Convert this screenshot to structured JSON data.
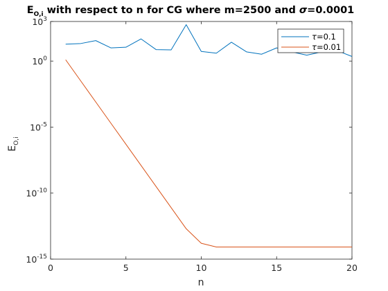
{
  "chart_data": {
    "type": "line",
    "title": {
      "prefix": "E",
      "prefix_sub": "O,i",
      "middle": " with respect to n for CG where m=2500 and ",
      "sigma_symbol": "σ",
      "suffix": "=0.0001"
    },
    "xlabel": "n",
    "ylabel": {
      "main": "E",
      "sub": "O,i"
    },
    "xlim": [
      0,
      20
    ],
    "ylim_log10": [
      -15,
      3
    ],
    "yscale": "log",
    "x_ticks": [
      0,
      5,
      10,
      15,
      20
    ],
    "y_ticks": [
      {
        "base": "10",
        "exp": "3",
        "log": 3
      },
      {
        "base": "10",
        "exp": "0",
        "log": 0
      },
      {
        "base": "10",
        "exp": "-5",
        "log": -5
      },
      {
        "base": "10",
        "exp": "-10",
        "log": -10
      },
      {
        "base": "10",
        "exp": "-15",
        "log": -15
      }
    ],
    "legend_position": "top-right",
    "grid": false,
    "x": [
      1,
      2,
      3,
      4,
      5,
      6,
      7,
      8,
      9,
      10,
      11,
      12,
      13,
      14,
      15,
      16,
      17,
      18,
      19,
      20
    ],
    "series": [
      {
        "name_symbol": "τ",
        "name_value": "=0.1",
        "color": "#0072bd",
        "log10_values": [
          1.28,
          1.33,
          1.55,
          1.0,
          1.05,
          1.68,
          0.87,
          0.85,
          2.76,
          0.73,
          0.6,
          1.43,
          0.7,
          0.52,
          1.0,
          0.7,
          0.45,
          0.7,
          0.8,
          0.35
        ]
      },
      {
        "name_symbol": "τ",
        "name_value": "=0.01",
        "color": "#d95319",
        "log10_values": [
          0.1,
          -1.5,
          -3.1,
          -4.7,
          -6.3,
          -7.9,
          -9.5,
          -11.1,
          -12.7,
          -13.8,
          -14.08,
          -14.08,
          -14.08,
          -14.08,
          -14.08,
          -14.08,
          -14.08,
          -14.08,
          -14.08,
          -14.08
        ]
      }
    ]
  }
}
